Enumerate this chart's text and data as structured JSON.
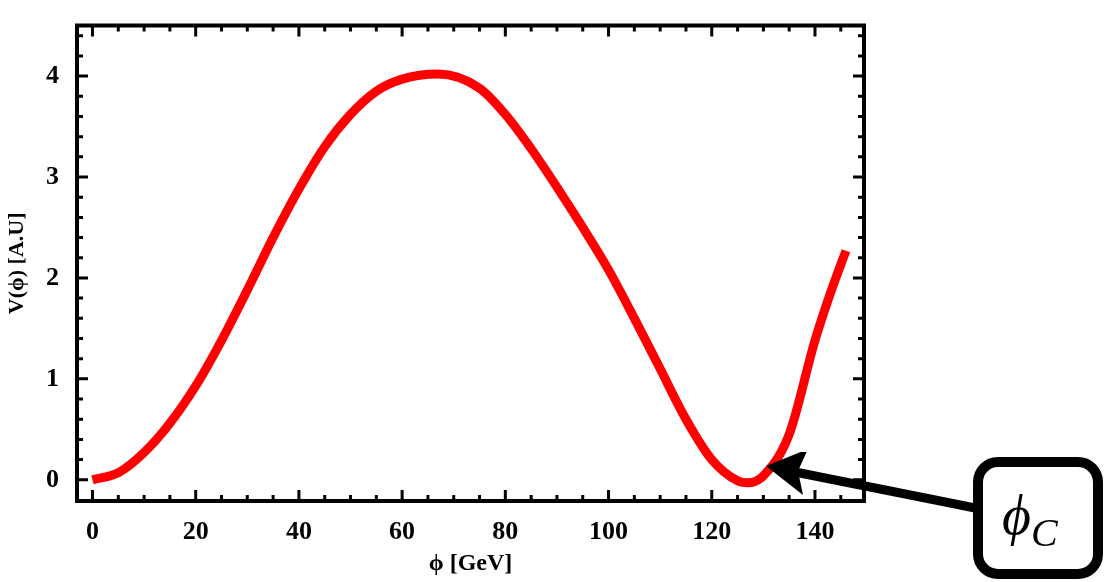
{
  "chart_data": {
    "type": "line",
    "xlabel": "ϕ [GeV]",
    "ylabel": "V(ϕ) [A.U]",
    "x": [
      0,
      5,
      10,
      15,
      20,
      25,
      30,
      35,
      40,
      45,
      50,
      55,
      60,
      67,
      75,
      80,
      85,
      90,
      95,
      100,
      105,
      110,
      115,
      120,
      125,
      127,
      130,
      135,
      140,
      143,
      146
    ],
    "series": [
      {
        "color": "#ff0000",
        "values": [
          0,
          0.07,
          0.27,
          0.56,
          0.93,
          1.38,
          1.88,
          2.4,
          2.88,
          3.3,
          3.62,
          3.85,
          3.97,
          4.02,
          3.88,
          3.62,
          3.28,
          2.9,
          2.5,
          2.08,
          1.6,
          1.1,
          0.6,
          0.2,
          -0.01,
          -0.03,
          0.04,
          0.45,
          1.38,
          1.85,
          2.27
        ]
      }
    ],
    "xlim": [
      -3,
      149.5
    ],
    "ylim": [
      -0.21,
      4.5
    ],
    "xticks": [
      0,
      {
        "value": 5,
        "label": null
      },
      {
        "value": 10,
        "label": null
      },
      {
        "value": 15,
        "label": null
      },
      20,
      {
        "value": 25,
        "label": null
      },
      {
        "value": 30,
        "label": null
      },
      {
        "value": 35,
        "label": null
      },
      40,
      {
        "value": 45,
        "label": null
      },
      {
        "value": 50,
        "label": null
      },
      {
        "value": 55,
        "label": null
      },
      60,
      {
        "value": 65,
        "label": null
      },
      {
        "value": 70,
        "label": null
      },
      {
        "value": 75,
        "label": null
      },
      80,
      {
        "value": 85,
        "label": null
      },
      {
        "value": 90,
        "label": null
      },
      {
        "value": 95,
        "label": null
      },
      100,
      {
        "value": 105,
        "label": null
      },
      {
        "value": 110,
        "label": null
      },
      {
        "value": 115,
        "label": null
      },
      120,
      {
        "value": 125,
        "label": null
      },
      {
        "value": 130,
        "label": null
      },
      {
        "value": 135,
        "label": null
      },
      140,
      {
        "value": 145,
        "label": null
      }
    ],
    "yticks": [
      0,
      {
        "value": 0.2,
        "label": null
      },
      {
        "value": 0.4,
        "label": null
      },
      {
        "value": 0.6,
        "label": null
      },
      {
        "value": 0.8,
        "label": null
      },
      1,
      {
        "value": 1.2,
        "label": null
      },
      {
        "value": 1.4,
        "label": null
      },
      {
        "value": 1.6,
        "label": null
      },
      {
        "value": 1.8,
        "label": null
      },
      2,
      {
        "value": 2.2,
        "label": null
      },
      {
        "value": 2.4,
        "label": null
      },
      {
        "value": 2.6,
        "label": null
      },
      {
        "value": 2.8,
        "label": null
      },
      3,
      {
        "value": 3.2,
        "label": null
      },
      {
        "value": 3.4,
        "label": null
      },
      {
        "value": 3.6,
        "label": null
      },
      {
        "value": 3.8,
        "label": null
      },
      4,
      {
        "value": 4.2,
        "label": null
      },
      {
        "value": 4.4,
        "label": null
      }
    ],
    "annotations": [
      "ϕ$_{C}$"
    ],
    "grid": false,
    "legend": false,
    "marker": "none",
    "line_style": "solid"
  }
}
